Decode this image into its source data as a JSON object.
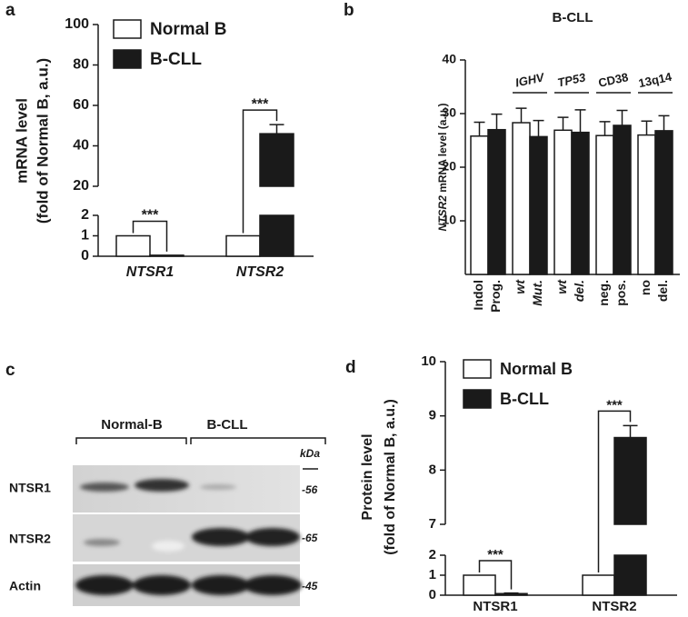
{
  "chart_data": [
    {
      "type": "bar",
      "panel_label": "a",
      "ylabel": [
        "mRNA level",
        "(fold of Normal B, a.u.)"
      ],
      "categories": [
        "NTSR1",
        "NTSR2"
      ],
      "series": [
        {
          "name": "Normal B",
          "color": "#ffffff",
          "values": [
            1,
            1
          ],
          "errors": [
            null,
            null
          ]
        },
        {
          "name": "B-CLL",
          "color": "#1a1a1a",
          "values": [
            0.05,
            46
          ],
          "errors": [
            null,
            4.5
          ]
        }
      ],
      "ylim": [
        0,
        100
      ],
      "ybreak": [
        2,
        20
      ],
      "yticks": [
        0,
        1,
        2,
        20,
        40,
        60,
        80,
        100
      ],
      "annotations": [
        {
          "text": "***",
          "category": 0
        },
        {
          "text": "***",
          "category": 1
        }
      ],
      "legend": "upper left"
    },
    {
      "type": "grouped_bar",
      "panel_label": "b",
      "title": "B-CLL",
      "ylabel": [
        "NTSR2",
        " mRNA level (a.u.)"
      ],
      "groups": [
        {
          "label": null,
          "categories": [
            "Indol",
            "Prog."
          ]
        },
        {
          "label": "IGHV",
          "categories": [
            "wt",
            "Mut."
          ]
        },
        {
          "label": "TP53",
          "categories": [
            "wt",
            "del."
          ]
        },
        {
          "label": "CD38",
          "categories": [
            "neg.",
            "pos."
          ]
        },
        {
          "label": "13q14",
          "categories": [
            "no",
            "del."
          ]
        }
      ],
      "series": [
        {
          "color": "#ffffff",
          "values": [
            25.8,
            28.3,
            26.9,
            25.9,
            26
          ],
          "errors": [
            2.6,
            2.7,
            2.4,
            2.6,
            2.6
          ]
        },
        {
          "color": "#1a1a1a",
          "values": [
            27,
            25.7,
            26.5,
            27.8,
            26.8
          ],
          "errors": [
            2.9,
            3,
            4.2,
            2.8,
            2.8
          ]
        }
      ],
      "ylim": [
        0,
        40
      ],
      "yticks": [
        10,
        20,
        30,
        40
      ]
    },
    {
      "type": "bar",
      "panel_label": "d",
      "ylabel": [
        "Protein level",
        "(fold of Normal B, a.u.)"
      ],
      "categories": [
        "NTSR1",
        "NTSR2"
      ],
      "series": [
        {
          "name": "Normal B",
          "color": "#ffffff",
          "values": [
            1,
            1
          ],
          "errors": [
            null,
            null
          ]
        },
        {
          "name": "B-CLL",
          "color": "#1a1a1a",
          "values": [
            0.08,
            8.6
          ],
          "errors": [
            0.03,
            0.22
          ]
        }
      ],
      "ylim": [
        0,
        10
      ],
      "ybreak": [
        2,
        7
      ],
      "yticks": [
        0,
        1,
        2,
        7,
        8,
        9,
        10
      ],
      "annotations": [
        {
          "text": "***",
          "category": 0
        },
        {
          "text": "***",
          "category": 1
        }
      ],
      "legend": "upper left"
    }
  ],
  "blot": {
    "panel_label": "c",
    "groups": [
      "Normal-B",
      "B-CLL"
    ],
    "unit": "kDa",
    "rows": [
      {
        "label": "NTSR1",
        "marker": "-56"
      },
      {
        "label": "NTSR2",
        "marker": "-65"
      },
      {
        "label": "Actin",
        "marker": "-45"
      }
    ]
  }
}
